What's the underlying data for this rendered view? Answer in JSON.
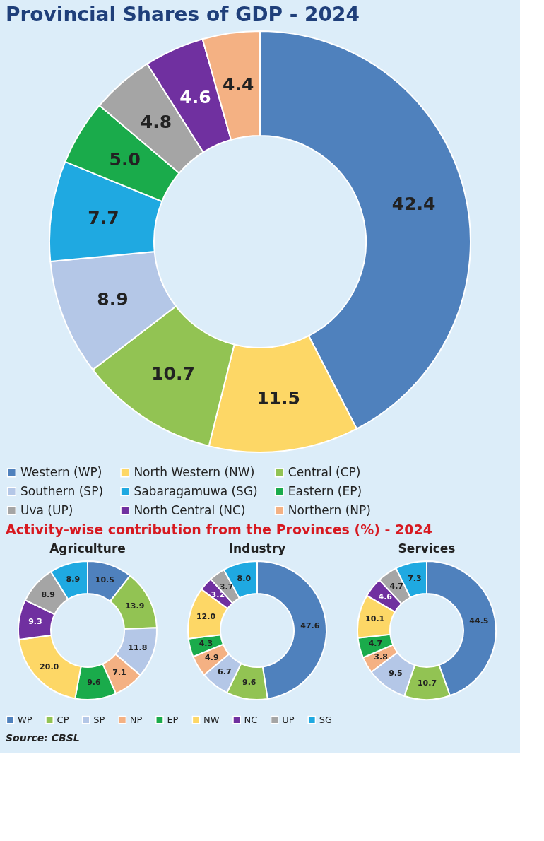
{
  "chart_data": [
    {
      "type": "donut",
      "title": "Provincial Shares of GDP - 2024",
      "categories": [
        "Western (WP)",
        "North Western (NW)",
        "Central (CP)",
        "Southern (SP)",
        "Sabaragamuwa (SG)",
        "Eastern (EP)",
        "Uva (UP)",
        "North Central (NC)",
        "Northern (NP)"
      ],
      "values": [
        42.4,
        11.5,
        10.7,
        8.9,
        7.7,
        5.0,
        4.8,
        4.6,
        4.4
      ],
      "value_labels": [
        "42.4",
        "11.5",
        "10.7",
        "8.9",
        "7.7",
        "5.0",
        "4.8",
        "4.6",
        "4.4"
      ],
      "colors": [
        "#4f81bd",
        "#fdd766",
        "#92c353",
        "#b4c7e7",
        "#1fa9e1",
        "#1aab4b",
        "#a5a5a5",
        "#7030a0",
        "#f4b183"
      ],
      "legend": "bottom"
    },
    {
      "type": "donut",
      "title": "Agriculture",
      "categories": [
        "WP",
        "CP",
        "SP",
        "NP",
        "EP",
        "NW",
        "NC",
        "UP",
        "SG"
      ],
      "values": [
        10.5,
        13.9,
        11.8,
        7.1,
        9.6,
        20.0,
        9.3,
        8.9,
        8.9
      ],
      "value_labels": [
        "10.5",
        "13.9",
        "11.8",
        "7.1",
        "9.6",
        "20.0",
        "9.3",
        "8.9",
        "8.9"
      ],
      "colors": [
        "#4f81bd",
        "#92c353",
        "#b4c7e7",
        "#f4b183",
        "#1aab4b",
        "#fdd766",
        "#7030a0",
        "#a5a5a5",
        "#1fa9e1"
      ],
      "legend": "bottom",
      "annotations": [
        "Activity-wise contribution from the Provinces (%) - 2024"
      ]
    },
    {
      "type": "donut",
      "title": "Industry",
      "categories": [
        null,
        null,
        null,
        null,
        null,
        null,
        null,
        null,
        null
      ],
      "values": [
        47.6,
        9.6,
        6.7,
        4.9,
        4.3,
        12.0,
        3.2,
        3.7,
        8.0
      ],
      "value_labels": [
        "47.6",
        "9.6",
        "6.7",
        "4.9",
        "4.3",
        "12.0",
        "3.2",
        "3.7",
        "8.0"
      ],
      "colors": [
        "#4f81bd",
        "#92c353",
        "#b4c7e7",
        "#f4b183",
        "#1aab4b",
        "#fdd766",
        "#7030a0",
        "#a5a5a5",
        "#1fa9e1"
      ]
    },
    {
      "type": "donut",
      "title": "Services",
      "categories": [
        null,
        null,
        null,
        null,
        null,
        null,
        null,
        null,
        null
      ],
      "values": [
        44.5,
        10.7,
        9.5,
        3.8,
        4.7,
        10.1,
        4.6,
        4.7,
        7.3
      ],
      "value_labels": [
        "44.5",
        "10.7",
        "9.5",
        "3.8",
        "4.7",
        "10.1",
        "4.6",
        "4.7",
        "7.3"
      ],
      "colors": [
        "#4f81bd",
        "#92c353",
        "#b4c7e7",
        "#f4b183",
        "#1aab4b",
        "#fdd766",
        "#7030a0",
        "#a5a5a5",
        "#1fa9e1"
      ],
      "annotations": [
        "Source: CBSL"
      ]
    }
  ]
}
